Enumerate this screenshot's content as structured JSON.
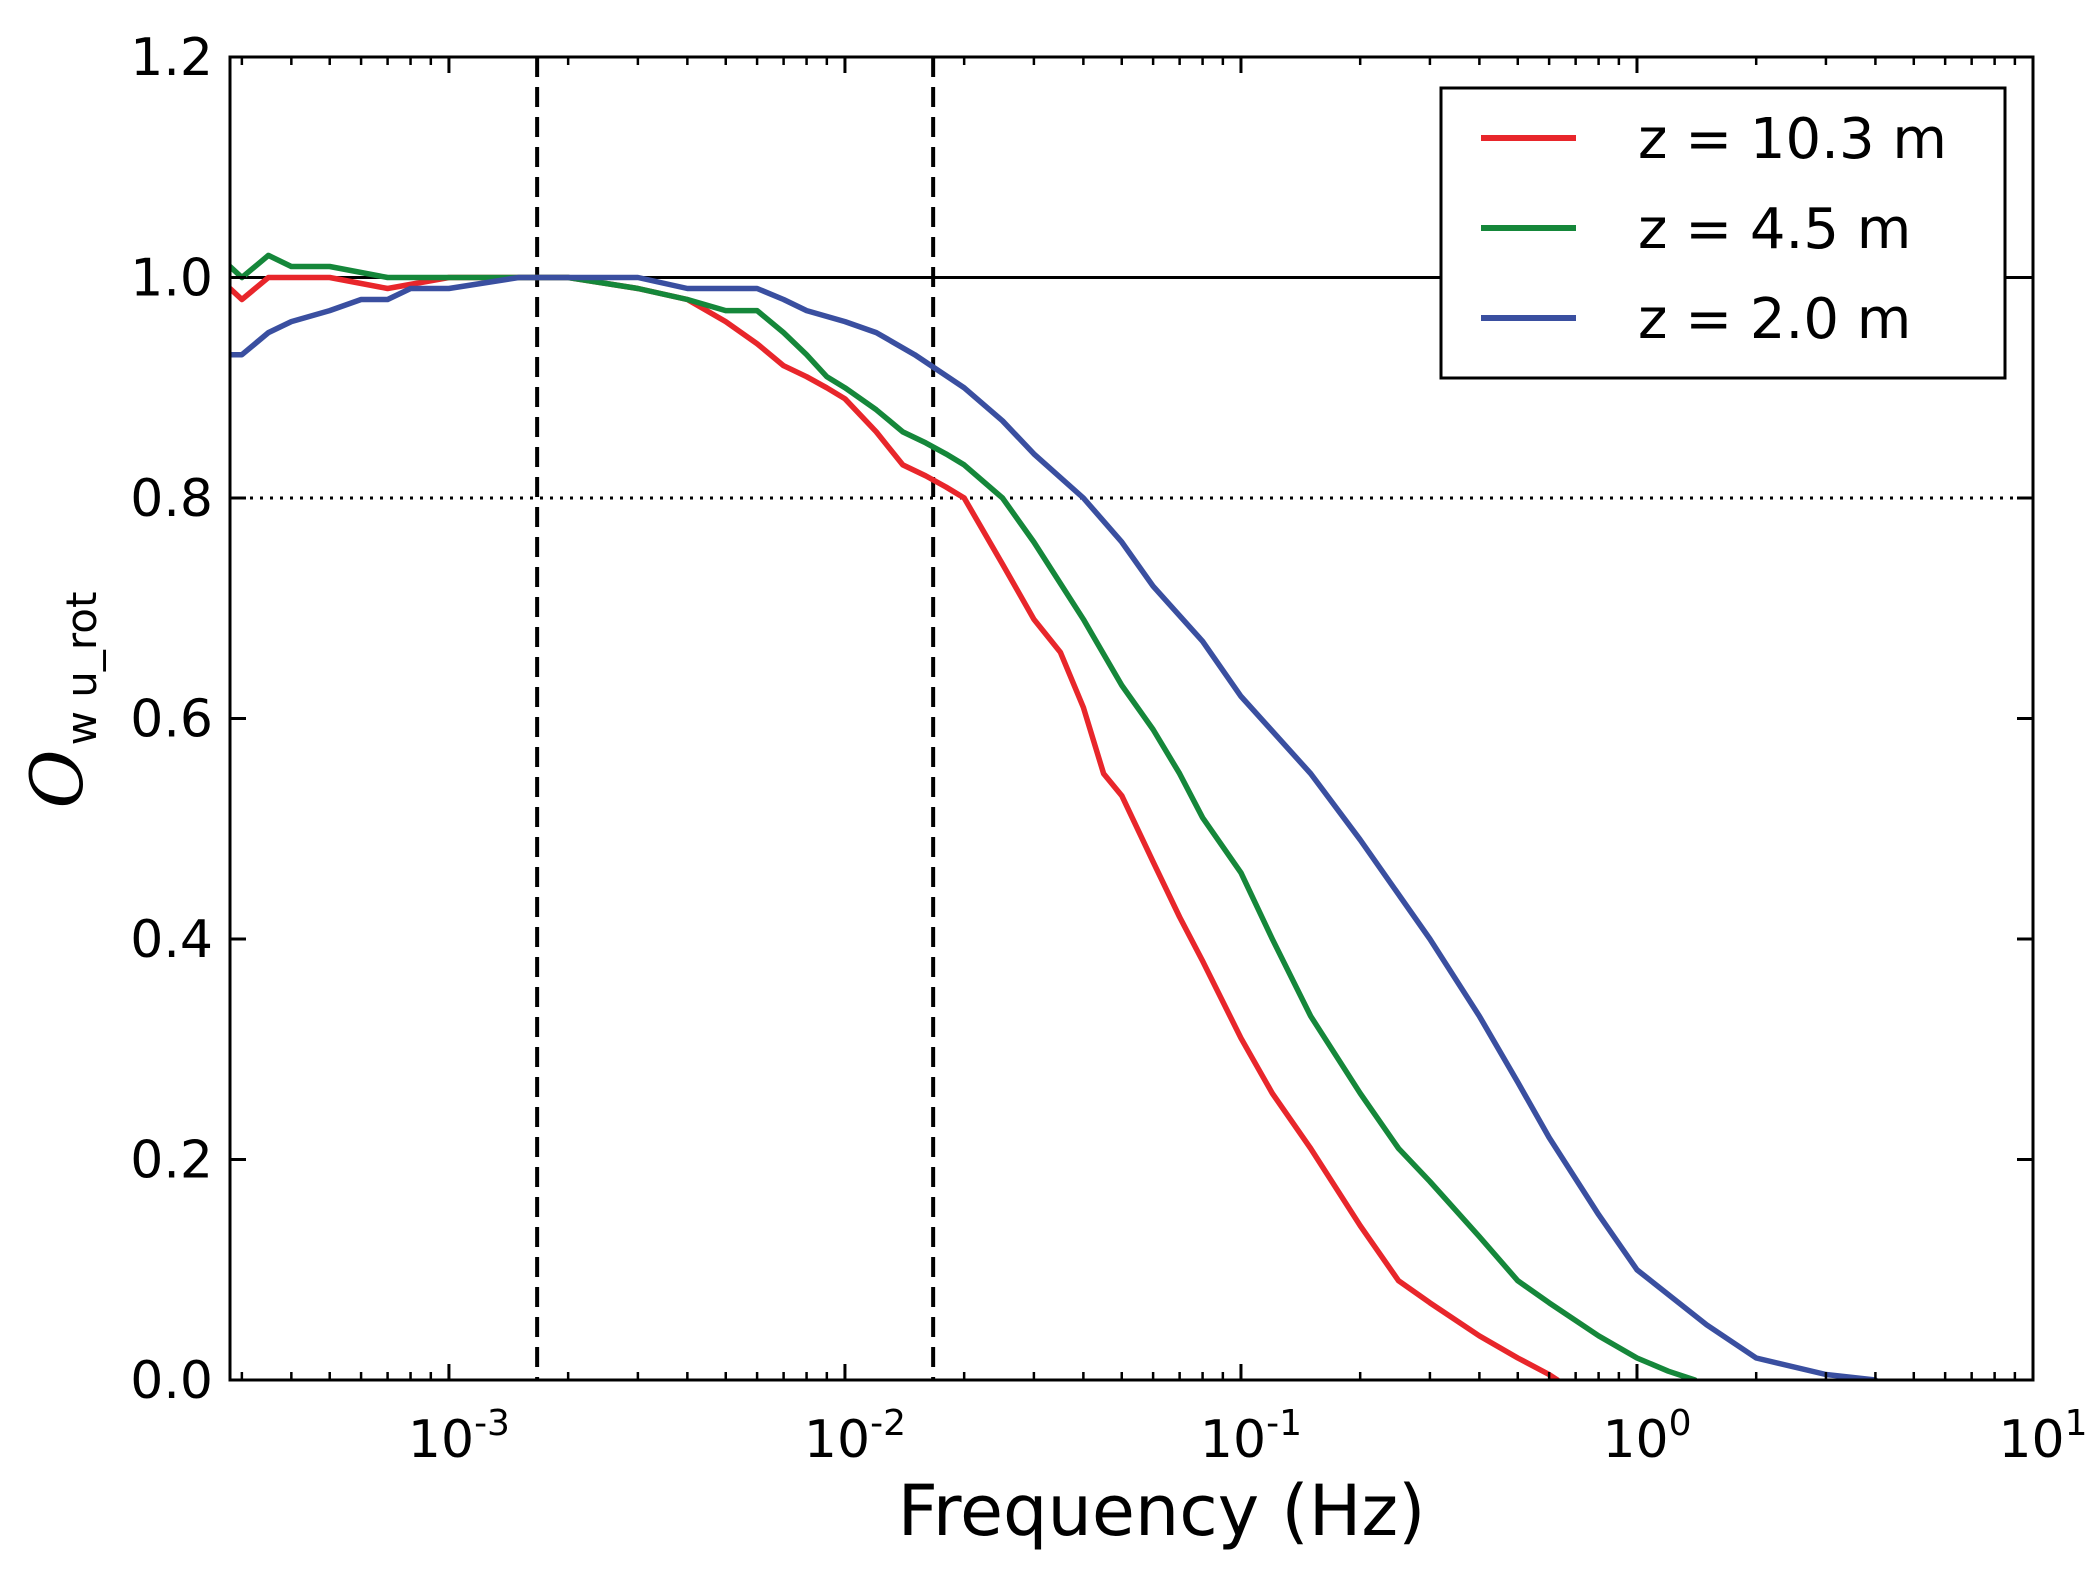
{
  "chart_data": {
    "type": "line",
    "xlabel": "Frequency (Hz)",
    "ylabel_main": "O",
    "ylabel_sub": "w u_rot",
    "x_scale": "log",
    "xlim": [
      0.00028,
      10
    ],
    "ylim": [
      0.0,
      1.2
    ],
    "x_ticks": [
      {
        "value": 0.001,
        "base": "10",
        "exp": "-3"
      },
      {
        "value": 0.01,
        "base": "10",
        "exp": "-2"
      },
      {
        "value": 0.1,
        "base": "10",
        "exp": "-1"
      },
      {
        "value": 1,
        "base": "10",
        "exp": "0"
      },
      {
        "value": 10,
        "base": "10",
        "exp": "1"
      }
    ],
    "y_ticks": [
      {
        "value": 0.0,
        "label": "0.0"
      },
      {
        "value": 0.2,
        "label": "0.2"
      },
      {
        "value": 0.4,
        "label": "0.4"
      },
      {
        "value": 0.6,
        "label": "0.6"
      },
      {
        "value": 0.8,
        "label": "0.8"
      },
      {
        "value": 1.0,
        "label": "1.0"
      },
      {
        "value": 1.2,
        "label": "1.2"
      }
    ],
    "grid": false,
    "legend_position": "top-right",
    "reference_lines": {
      "horizontal_solid": 1.0,
      "horizontal_dotted": 0.8,
      "vertical_dashed": [
        0.00167,
        0.0167
      ]
    },
    "series": [
      {
        "name": "z = 10.3 m",
        "color": "#e8262b",
        "x": [
          0.00028,
          0.0003,
          0.00035,
          0.0004,
          0.0005,
          0.0007,
          0.001,
          0.0015,
          0.002,
          0.003,
          0.004,
          0.005,
          0.006,
          0.007,
          0.008,
          0.009,
          0.01,
          0.012,
          0.014,
          0.016,
          0.018,
          0.02,
          0.025,
          0.03,
          0.035,
          0.04,
          0.045,
          0.05,
          0.06,
          0.07,
          0.08,
          0.1,
          0.12,
          0.15,
          0.2,
          0.25,
          0.3,
          0.4,
          0.5,
          0.6,
          0.63
        ],
        "y": [
          0.99,
          0.98,
          1.0,
          1.0,
          1.0,
          0.99,
          1.0,
          1.0,
          1.0,
          0.99,
          0.98,
          0.96,
          0.94,
          0.92,
          0.91,
          0.9,
          0.89,
          0.86,
          0.83,
          0.82,
          0.81,
          0.8,
          0.74,
          0.69,
          0.66,
          0.61,
          0.55,
          0.53,
          0.47,
          0.42,
          0.38,
          0.31,
          0.26,
          0.21,
          0.14,
          0.09,
          0.07,
          0.04,
          0.02,
          0.005,
          0.0
        ]
      },
      {
        "name": "z = 4.5 m",
        "color": "#15873a",
        "x": [
          0.00028,
          0.0003,
          0.00035,
          0.0004,
          0.0005,
          0.0007,
          0.001,
          0.0015,
          0.002,
          0.003,
          0.004,
          0.005,
          0.006,
          0.007,
          0.008,
          0.009,
          0.01,
          0.012,
          0.014,
          0.016,
          0.018,
          0.02,
          0.025,
          0.03,
          0.04,
          0.05,
          0.06,
          0.07,
          0.08,
          0.1,
          0.12,
          0.15,
          0.2,
          0.25,
          0.3,
          0.4,
          0.5,
          0.6,
          0.8,
          1.0,
          1.2,
          1.4
        ],
        "y": [
          1.01,
          1.0,
          1.02,
          1.01,
          1.01,
          1.0,
          1.0,
          1.0,
          1.0,
          0.99,
          0.98,
          0.97,
          0.97,
          0.95,
          0.93,
          0.91,
          0.9,
          0.88,
          0.86,
          0.85,
          0.84,
          0.83,
          0.8,
          0.76,
          0.69,
          0.63,
          0.59,
          0.55,
          0.51,
          0.46,
          0.4,
          0.33,
          0.26,
          0.21,
          0.18,
          0.13,
          0.09,
          0.07,
          0.04,
          0.02,
          0.008,
          0.0
        ]
      },
      {
        "name": "z = 2.0 m",
        "color": "#3a4fa0",
        "x": [
          0.00028,
          0.0003,
          0.00035,
          0.0004,
          0.0005,
          0.0006,
          0.0007,
          0.0008,
          0.001,
          0.0015,
          0.002,
          0.003,
          0.004,
          0.005,
          0.006,
          0.007,
          0.008,
          0.01,
          0.012,
          0.015,
          0.02,
          0.025,
          0.03,
          0.04,
          0.05,
          0.06,
          0.08,
          0.1,
          0.15,
          0.2,
          0.3,
          0.4,
          0.5,
          0.6,
          0.8,
          1.0,
          1.5,
          2.0,
          3.0,
          4.0
        ],
        "y": [
          0.93,
          0.93,
          0.95,
          0.96,
          0.97,
          0.98,
          0.98,
          0.99,
          0.99,
          1.0,
          1.0,
          1.0,
          0.99,
          0.99,
          0.99,
          0.98,
          0.97,
          0.96,
          0.95,
          0.93,
          0.9,
          0.87,
          0.84,
          0.8,
          0.76,
          0.72,
          0.67,
          0.62,
          0.55,
          0.49,
          0.4,
          0.33,
          0.27,
          0.22,
          0.15,
          0.1,
          0.05,
          0.02,
          0.005,
          0.0
        ]
      }
    ]
  }
}
